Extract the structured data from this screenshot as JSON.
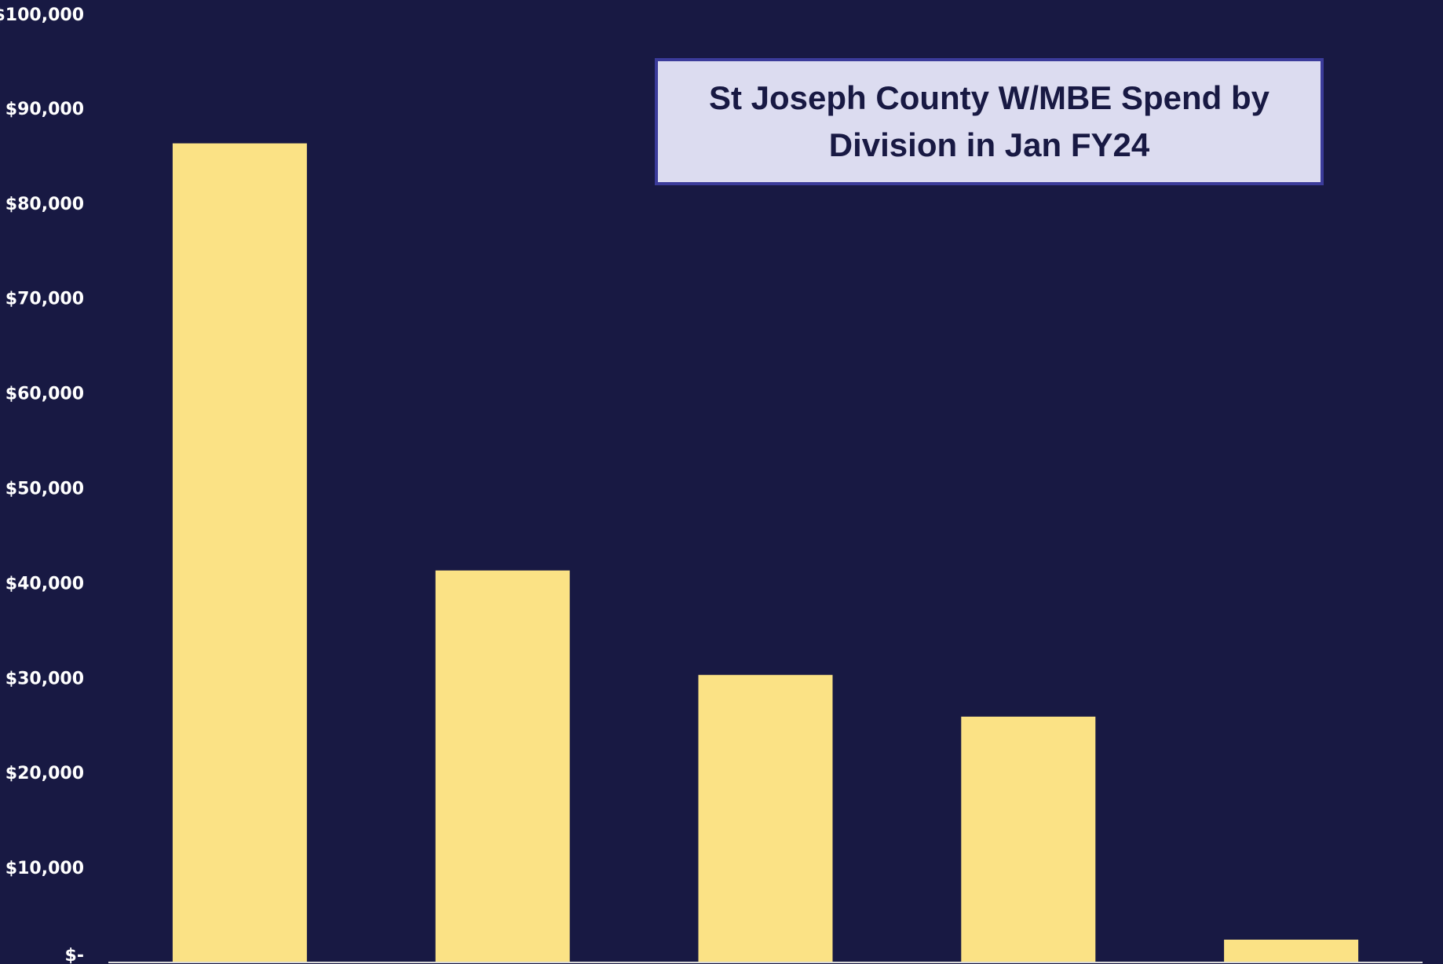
{
  "colors": {
    "background": "#181943",
    "bar": "#fbe285",
    "axis_text": "#ffffff",
    "axis_line": "#d9d9d9",
    "title_box_fill": "#dcdcf0",
    "title_box_border": "#3b3b9a",
    "title_text": "#181943"
  },
  "chart_data": {
    "type": "bar",
    "title": "St Joseph County W/MBE Spend by Division in Jan FY24",
    "xlabel": "",
    "ylabel": "",
    "categories": [
      "",
      "",
      "",
      "",
      ""
    ],
    "values": [
      86300,
      41300,
      30300,
      25900,
      2400
    ],
    "ylim": [
      0,
      100000
    ],
    "yticks": [
      0,
      10000,
      20000,
      30000,
      40000,
      50000,
      60000,
      70000,
      80000,
      90000,
      100000
    ],
    "ytick_labels": [
      "$-",
      "$10,000",
      "$20,000",
      "$30,000",
      "$40,000",
      "$50,000",
      "$60,000",
      "$70,000",
      "$80,000",
      "$90,000",
      "$100,000"
    ],
    "grid": false,
    "legend": "none"
  }
}
